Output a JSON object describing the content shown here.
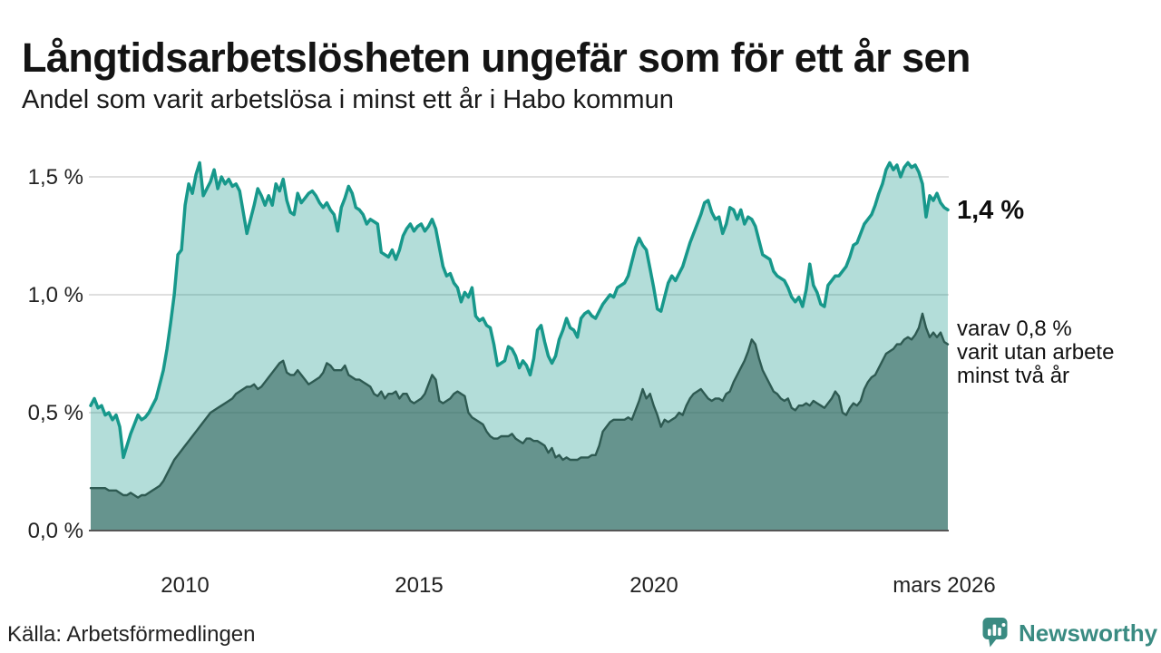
{
  "header": {
    "title": "Långtidsarbetslösheten ungefär som för ett år sen",
    "subtitle": "Andel som varit arbetslösa i minst ett år i Habo kommun"
  },
  "annotations": {
    "latest_total": "1,4 %",
    "secondary_line1": "varav 0,8 %",
    "secondary_line2": "varit utan arbete",
    "secondary_line3": "minst två år"
  },
  "footer": {
    "source": "Källa: Arbetsförmedlingen",
    "brand_name": "Newsworthy",
    "brand_icon": "bar-chart-speech-bubble-icon"
  },
  "colors": {
    "accent_teal_line": "#17988b",
    "dark_series_line": "#2e5a52",
    "light_area_fill": "rgba(23,152,139,0.33)",
    "dark_area_fill": "rgba(50,100,92,0.60)",
    "gridline": "#dfdfdf",
    "axis_line": "#555555",
    "brand_teal": "#3a8b82"
  },
  "chart_data": {
    "type": "area",
    "title": "Långtidsarbetslösheten ungefär som för ett år sen",
    "subtitle": "Andel som varit arbetslösa i minst ett år i Habo kommun",
    "unit": "%",
    "x_start_year": 2008.0,
    "x_end_year": 2026.25,
    "ylim": [
      0,
      1.63
    ],
    "grid": true,
    "x_ticks": [
      {
        "year": 2010,
        "label": "2010"
      },
      {
        "year": 2015,
        "label": "2015"
      },
      {
        "year": 2020,
        "label": "2020"
      },
      {
        "year": 2026.17,
        "label": "mars 2026"
      }
    ],
    "y_ticks": [
      {
        "value": 0.0,
        "label": "0,0 %"
      },
      {
        "value": 0.5,
        "label": "0,5 %"
      },
      {
        "value": 1.0,
        "label": "1,0 %"
      },
      {
        "value": 1.5,
        "label": "1,5 %"
      }
    ],
    "series": [
      {
        "name": "Arbetslösa minst ett år",
        "color": "#17988b",
        "fill": "rgba(23,152,139,0.33)",
        "last_value_label": "1,4 %",
        "values": [
          0.53,
          0.56,
          0.52,
          0.53,
          0.49,
          0.5,
          0.47,
          0.49,
          0.44,
          0.31,
          0.36,
          0.41,
          0.45,
          0.49,
          0.47,
          0.48,
          0.5,
          0.53,
          0.56,
          0.62,
          0.68,
          0.77,
          0.88,
          1.0,
          1.17,
          1.19,
          1.38,
          1.47,
          1.43,
          1.51,
          1.56,
          1.42,
          1.45,
          1.48,
          1.53,
          1.45,
          1.5,
          1.47,
          1.49,
          1.46,
          1.47,
          1.44,
          1.35,
          1.26,
          1.32,
          1.38,
          1.45,
          1.42,
          1.38,
          1.42,
          1.38,
          1.47,
          1.44,
          1.49,
          1.4,
          1.35,
          1.34,
          1.43,
          1.39,
          1.41,
          1.43,
          1.44,
          1.42,
          1.39,
          1.37,
          1.39,
          1.36,
          1.34,
          1.27,
          1.37,
          1.41,
          1.46,
          1.43,
          1.37,
          1.36,
          1.34,
          1.3,
          1.32,
          1.31,
          1.3,
          1.18,
          1.17,
          1.16,
          1.19,
          1.15,
          1.19,
          1.25,
          1.28,
          1.3,
          1.27,
          1.29,
          1.3,
          1.27,
          1.29,
          1.32,
          1.28,
          1.2,
          1.12,
          1.08,
          1.09,
          1.05,
          1.03,
          0.97,
          1.01,
          0.99,
          1.03,
          0.91,
          0.89,
          0.9,
          0.87,
          0.86,
          0.79,
          0.7,
          0.71,
          0.72,
          0.78,
          0.77,
          0.74,
          0.69,
          0.72,
          0.7,
          0.66,
          0.73,
          0.85,
          0.87,
          0.8,
          0.74,
          0.71,
          0.74,
          0.81,
          0.85,
          0.9,
          0.86,
          0.85,
          0.82,
          0.9,
          0.92,
          0.93,
          0.91,
          0.9,
          0.93,
          0.96,
          0.98,
          1.0,
          0.99,
          1.03,
          1.04,
          1.05,
          1.08,
          1.14,
          1.2,
          1.24,
          1.21,
          1.19,
          1.11,
          1.03,
          0.94,
          0.93,
          0.99,
          1.05,
          1.08,
          1.06,
          1.09,
          1.12,
          1.17,
          1.22,
          1.26,
          1.3,
          1.34,
          1.39,
          1.4,
          1.35,
          1.32,
          1.33,
          1.26,
          1.3,
          1.37,
          1.36,
          1.32,
          1.36,
          1.3,
          1.33,
          1.32,
          1.29,
          1.23,
          1.17,
          1.16,
          1.15,
          1.1,
          1.08,
          1.07,
          1.06,
          1.03,
          0.99,
          0.97,
          0.99,
          0.95,
          1.02,
          1.13,
          1.04,
          1.01,
          0.96,
          0.95,
          1.04,
          1.06,
          1.08,
          1.08,
          1.1,
          1.12,
          1.16,
          1.21,
          1.22,
          1.26,
          1.3,
          1.32,
          1.34,
          1.38,
          1.43,
          1.47,
          1.53,
          1.56,
          1.53,
          1.55,
          1.5,
          1.54,
          1.56,
          1.54,
          1.55,
          1.52,
          1.47,
          1.33,
          1.42,
          1.4,
          1.43,
          1.39,
          1.37,
          1.36
        ]
      },
      {
        "name": "Arbetslösa minst två år",
        "color": "#2e5a52",
        "fill": "rgba(50,100,92,0.60)",
        "last_value_label": "varav 0,8 % varit utan arbete minst två år",
        "values": [
          0.18,
          0.18,
          0.18,
          0.18,
          0.18,
          0.17,
          0.17,
          0.17,
          0.16,
          0.15,
          0.15,
          0.16,
          0.15,
          0.14,
          0.15,
          0.15,
          0.16,
          0.17,
          0.18,
          0.19,
          0.21,
          0.24,
          0.27,
          0.3,
          0.32,
          0.34,
          0.36,
          0.38,
          0.4,
          0.42,
          0.44,
          0.46,
          0.48,
          0.5,
          0.51,
          0.52,
          0.53,
          0.54,
          0.55,
          0.56,
          0.58,
          0.59,
          0.6,
          0.61,
          0.61,
          0.62,
          0.6,
          0.61,
          0.63,
          0.65,
          0.67,
          0.69,
          0.71,
          0.72,
          0.67,
          0.66,
          0.66,
          0.68,
          0.66,
          0.64,
          0.62,
          0.63,
          0.64,
          0.65,
          0.67,
          0.71,
          0.7,
          0.68,
          0.68,
          0.68,
          0.7,
          0.66,
          0.65,
          0.64,
          0.64,
          0.63,
          0.62,
          0.61,
          0.58,
          0.57,
          0.59,
          0.56,
          0.58,
          0.58,
          0.59,
          0.56,
          0.58,
          0.58,
          0.55,
          0.54,
          0.55,
          0.56,
          0.58,
          0.62,
          0.66,
          0.64,
          0.55,
          0.54,
          0.55,
          0.56,
          0.58,
          0.59,
          0.58,
          0.57,
          0.5,
          0.48,
          0.47,
          0.46,
          0.45,
          0.42,
          0.4,
          0.39,
          0.39,
          0.4,
          0.4,
          0.4,
          0.41,
          0.39,
          0.38,
          0.37,
          0.39,
          0.39,
          0.38,
          0.38,
          0.37,
          0.36,
          0.33,
          0.35,
          0.31,
          0.32,
          0.3,
          0.31,
          0.3,
          0.3,
          0.3,
          0.31,
          0.31,
          0.31,
          0.32,
          0.32,
          0.36,
          0.42,
          0.44,
          0.46,
          0.47,
          0.47,
          0.47,
          0.47,
          0.48,
          0.47,
          0.51,
          0.55,
          0.6,
          0.56,
          0.58,
          0.53,
          0.49,
          0.44,
          0.47,
          0.46,
          0.47,
          0.48,
          0.5,
          0.49,
          0.53,
          0.56,
          0.58,
          0.59,
          0.6,
          0.58,
          0.56,
          0.55,
          0.56,
          0.56,
          0.55,
          0.58,
          0.59,
          0.63,
          0.66,
          0.69,
          0.72,
          0.76,
          0.81,
          0.79,
          0.73,
          0.68,
          0.65,
          0.62,
          0.59,
          0.58,
          0.56,
          0.55,
          0.56,
          0.52,
          0.51,
          0.53,
          0.53,
          0.54,
          0.53,
          0.55,
          0.54,
          0.53,
          0.52,
          0.54,
          0.56,
          0.59,
          0.57,
          0.5,
          0.49,
          0.52,
          0.54,
          0.53,
          0.55,
          0.6,
          0.63,
          0.65,
          0.66,
          0.69,
          0.72,
          0.75,
          0.76,
          0.77,
          0.79,
          0.79,
          0.81,
          0.82,
          0.81,
          0.83,
          0.86,
          0.92,
          0.86,
          0.82,
          0.84,
          0.82,
          0.84,
          0.8,
          0.79
        ]
      }
    ]
  }
}
